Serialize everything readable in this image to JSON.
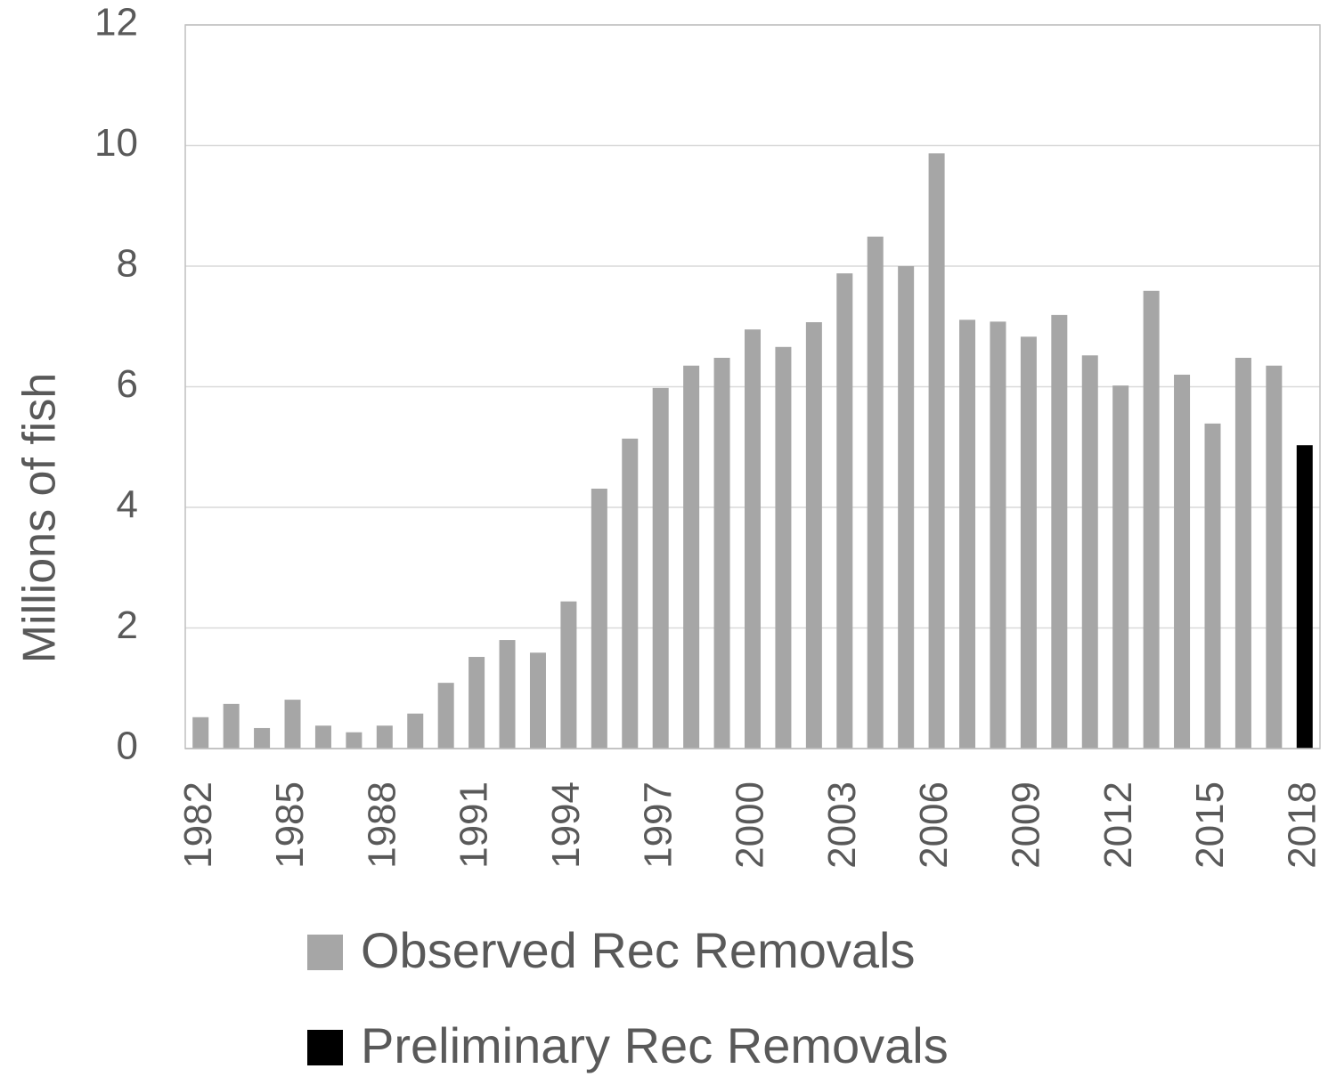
{
  "chart_data": {
    "type": "bar",
    "y_axis_label": "Millions of fish",
    "categories": [
      "1982",
      null,
      null,
      "1985",
      null,
      null,
      "1988",
      null,
      null,
      "1991",
      null,
      null,
      "1994",
      null,
      null,
      "1997",
      null,
      null,
      "2000",
      null,
      null,
      "2003",
      null,
      null,
      "2006",
      null,
      null,
      "2009",
      null,
      null,
      "2012",
      null,
      null,
      "2015",
      null,
      null,
      "2018"
    ],
    "series": [
      {
        "name": "Observed Rec Removals",
        "color": "#a6a6a6",
        "values": [
          0.52,
          0.74,
          0.34,
          0.81,
          0.38,
          0.27,
          0.38,
          0.58,
          1.09,
          1.52,
          1.8,
          1.59,
          2.44,
          4.31,
          5.14,
          5.98,
          6.35,
          6.48,
          6.95,
          6.66,
          7.07,
          7.88,
          8.49,
          8.0,
          9.87,
          7.11,
          7.08,
          6.83,
          7.19,
          6.52,
          6.02,
          7.59,
          6.2,
          5.39,
          6.48,
          6.35,
          null
        ]
      },
      {
        "name": "Preliminary Rec Removals",
        "color": "#000000",
        "values": [
          null,
          null,
          null,
          null,
          null,
          null,
          null,
          null,
          null,
          null,
          null,
          null,
          null,
          null,
          null,
          null,
          null,
          null,
          null,
          null,
          null,
          null,
          null,
          null,
          null,
          null,
          null,
          null,
          null,
          null,
          null,
          null,
          null,
          null,
          null,
          null,
          5.03
        ]
      }
    ],
    "ylim": [
      0,
      12
    ],
    "yticks": [
      0,
      2,
      4,
      6,
      8,
      10,
      12
    ],
    "grid": true,
    "legend": "bottom"
  }
}
